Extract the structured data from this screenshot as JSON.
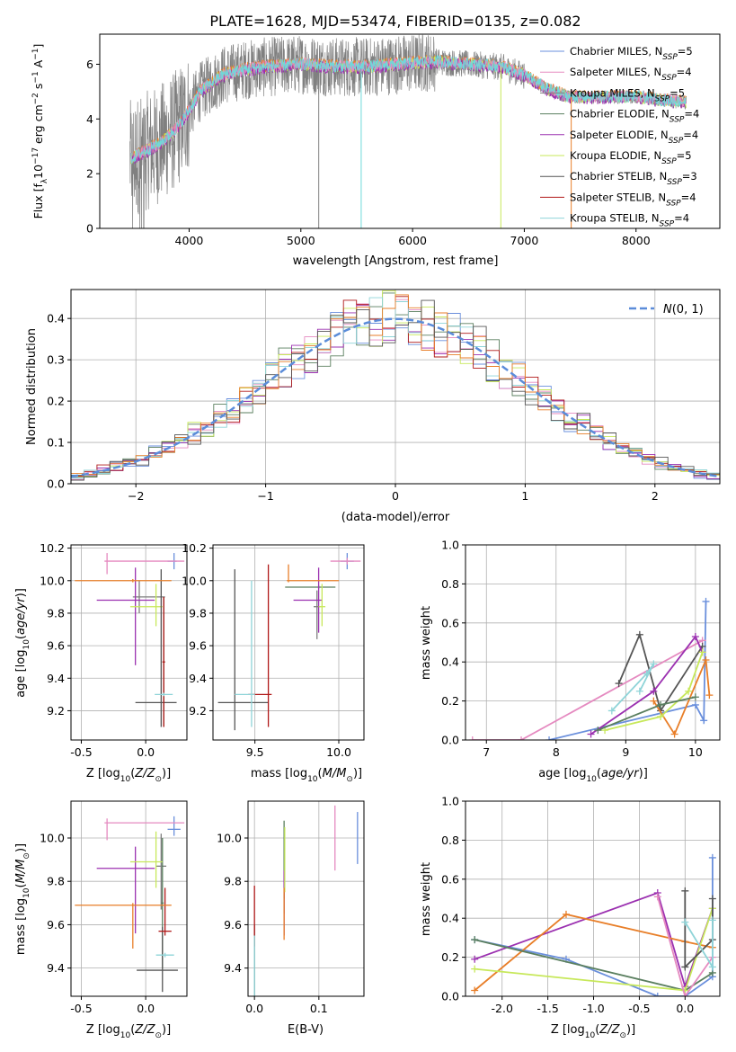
{
  "figure_title": "PLATE=1628, MJD=53474, FIBERID=0135, z=0.082",
  "colors": {
    "chabrier_miles": "#6a8fdc",
    "salpeter_miles": "#e58ac0",
    "kroupa_miles": "#7f7f7f",
    "chabrier_elodie": "#5a7f5f",
    "salpeter_elodie": "#9b30b0",
    "kroupa_elodie": "#c7e85a",
    "chabrier_stelib": "#555555",
    "salpeter_stelib": "#b01818",
    "kroupa_stelib": "#8fd4d8",
    "data": "#808080",
    "orange": "#e87e28",
    "cyan": "#6fd9d9"
  },
  "chart_data": [
    {
      "id": "spectrum",
      "type": "line",
      "xlabel": "wavelength [Angstrom, rest frame]",
      "ylabel": "Flux [f_λ10^-17 erg cm^-2 s^-1 A^-1]",
      "xlim": [
        3200,
        8750
      ],
      "ylim": [
        0,
        7.1
      ],
      "xticks": [
        4000,
        5000,
        6000,
        7000,
        8000
      ],
      "yticks": [
        0,
        2,
        4,
        6
      ],
      "grid": false,
      "legend": "upper right",
      "legend_labels": [
        "Chabrier MILES, N_SSP=5",
        "Salpeter MILES, N_SSP=4",
        "Kroupa MILES, N_SSP=5",
        "Chabrier ELODIE, N_SSP=4",
        "Salpeter ELODIE, N_SSP=4",
        "Kroupa ELODIE, N_SSP=5",
        "Chabrier STELIB, N_SSP=3",
        "Salpeter STELIB, N_SSP=4",
        "Kroupa STELIB, N_SSP=4"
      ],
      "continuum": {
        "x": [
          3470,
          3550,
          3700,
          3800,
          3900,
          4000,
          4100,
          4300,
          4500,
          4700,
          5000,
          5300,
          5600,
          5900,
          6200,
          6500,
          6800,
          7000,
          7200,
          7400,
          7600,
          7800,
          8000,
          8200,
          8450
        ],
        "y": [
          2.5,
          2.7,
          3.0,
          3.3,
          3.7,
          4.3,
          5.0,
          5.6,
          5.8,
          5.9,
          6.0,
          5.9,
          5.9,
          6.0,
          6.1,
          6.0,
          5.9,
          5.6,
          5.1,
          4.8,
          4.8,
          4.8,
          4.8,
          4.7,
          4.6
        ]
      }
    },
    {
      "id": "residual_histogram",
      "type": "bar",
      "xlabel": "(data-model)/error",
      "ylabel": "Normed distribution",
      "xlim": [
        -2.5,
        2.5
      ],
      "ylim": [
        0,
        0.47
      ],
      "xticks": [
        -2,
        -1,
        0,
        1,
        2
      ],
      "yticks": [
        0.0,
        0.1,
        0.2,
        0.3,
        0.4
      ],
      "grid": true,
      "legend": "upper right",
      "legend_labels": [
        "N(0,1)"
      ]
    },
    {
      "id": "age_vs_Z",
      "type": "scatter",
      "xlabel": "Z [log10(Z/Z⊙)]",
      "ylabel": "age  [log10(age/yr)]",
      "xlim": [
        -0.58,
        0.32
      ],
      "ylim": [
        9.02,
        10.22
      ],
      "xticks": [
        -0.5,
        0.0
      ],
      "yticks": [
        9.2,
        9.4,
        9.6,
        9.8,
        10.0,
        10.2
      ],
      "grid": true,
      "points": [
        {
          "series": "chabrier_miles",
          "x": 0.22,
          "y": 10.12,
          "xerr": [
            0.05,
            0.02
          ],
          "yerr": [
            0.05,
            0.05
          ]
        },
        {
          "series": "salpeter_miles",
          "x": -0.3,
          "y": 10.12,
          "xerr": [
            0.02,
            0.6
          ],
          "yerr": [
            0.08,
            0.05
          ]
        },
        {
          "series": "kroupa_miles",
          "x": -0.05,
          "y": 9.9,
          "xerr": [
            0.05,
            0.2
          ],
          "yerr": [
            0.1,
            0.1
          ]
        },
        {
          "series": "chabrier_elodie",
          "x": 0.14,
          "y": 9.5,
          "xerr": [
            0.01,
            0.01
          ],
          "yerr": [
            0.4,
            0.4
          ]
        },
        {
          "series": "salpeter_elodie",
          "x": -0.08,
          "y": 9.88,
          "xerr": [
            0.3,
            0.15
          ],
          "yerr": [
            0.4,
            0.2
          ]
        },
        {
          "series": "kroupa_elodie",
          "x": 0.08,
          "y": 9.84,
          "xerr": [
            0.2,
            0.05
          ],
          "yerr": [
            0.12,
            0.14
          ]
        },
        {
          "series": "chabrier_stelib",
          "x": 0.12,
          "y": 9.25,
          "xerr": [
            0.2,
            0.12
          ],
          "yerr": [
            0.15,
            0.82
          ]
        },
        {
          "series": "salpeter_stelib",
          "x": 0.14,
          "y": 9.5,
          "xerr": [
            0.01,
            0.01
          ],
          "yerr": [
            0.4,
            0.4
          ]
        },
        {
          "series": "kroupa_stelib",
          "x": 0.14,
          "y": 9.3,
          "xerr": [
            0.07,
            0.07
          ],
          "yerr": [
            0.01,
            0.01
          ]
        },
        {
          "series": "orange",
          "x": -0.1,
          "y": 10.0,
          "xerr": [
            0.45,
            0.3
          ],
          "yerr": [
            0.01,
            0.01
          ]
        }
      ]
    },
    {
      "id": "age_vs_mass",
      "type": "scatter",
      "xlabel": "mass [log10(M/M⊙)]",
      "ylabel": "",
      "xlim": [
        9.25,
        10.15
      ],
      "ylim": [
        9.02,
        10.22
      ],
      "xticks": [
        9.5,
        10.0
      ],
      "yticks": [
        9.2,
        9.4,
        9.6,
        9.8,
        10.0,
        10.2
      ],
      "grid": true,
      "points": [
        {
          "series": "chabrier_miles",
          "x": 10.05,
          "y": 10.12,
          "xerr": [
            0.04,
            0.04
          ],
          "yerr": [
            0.05,
            0.05
          ]
        },
        {
          "series": "salpeter_miles",
          "x": 10.05,
          "y": 10.12,
          "xerr": [
            0.1,
            0.08
          ],
          "yerr": [
            0.02,
            0.02
          ]
        },
        {
          "series": "kroupa_miles",
          "x": 9.87,
          "y": 9.84,
          "xerr": [
            0.02,
            0.02
          ],
          "yerr": [
            0.2,
            0.1
          ]
        },
        {
          "series": "chabrier_elodie",
          "x": 9.88,
          "y": 9.96,
          "xerr": [
            0.2,
            0.1
          ],
          "yerr": [
            0.01,
            0.01
          ]
        },
        {
          "series": "salpeter_elodie",
          "x": 9.88,
          "y": 9.88,
          "xerr": [
            0.15,
            0.02
          ],
          "yerr": [
            0.2,
            0.2
          ]
        },
        {
          "series": "kroupa_elodie",
          "x": 9.9,
          "y": 9.84,
          "xerr": [
            0.02,
            0.02
          ],
          "yerr": [
            0.12,
            0.14
          ]
        },
        {
          "series": "chabrier_stelib",
          "x": 9.38,
          "y": 9.25,
          "xerr": [
            0.1,
            0.2
          ],
          "yerr": [
            0.17,
            0.82
          ]
        },
        {
          "series": "salpeter_stelib",
          "x": 9.58,
          "y": 9.3,
          "xerr": [
            0.12,
            0.02
          ],
          "yerr": [
            0.2,
            0.8
          ]
        },
        {
          "series": "kroupa_stelib",
          "x": 9.48,
          "y": 9.3,
          "xerr": [
            0.1,
            0.02
          ],
          "yerr": [
            0.2,
            0.7
          ]
        },
        {
          "series": "orange",
          "x": 9.7,
          "y": 10.0,
          "xerr": [
            0.01,
            0.3
          ],
          "yerr": [
            0.01,
            0.1
          ]
        }
      ]
    },
    {
      "id": "mass_weight_vs_age",
      "type": "line",
      "xlabel": "age  [log10(age/yr)]",
      "ylabel": "mass weight",
      "xlim": [
        6.7,
        10.35
      ],
      "ylim": [
        0,
        1.0
      ],
      "xticks": [
        7,
        8,
        9,
        10
      ],
      "yticks": [
        0.0,
        0.2,
        0.4,
        0.6,
        0.8,
        1.0
      ],
      "grid": true,
      "series": [
        {
          "color": "chabrier_miles",
          "x": [
            7.9,
            10.0,
            10.12,
            10.15
          ],
          "y": [
            0.0,
            0.18,
            0.1,
            0.71
          ]
        },
        {
          "color": "salpeter_miles",
          "x": [
            6.8,
            7.5,
            10.1
          ],
          "y": [
            0.0,
            0.0,
            0.51
          ]
        },
        {
          "color": "chabrier_stelib",
          "x": [
            8.9,
            9.2,
            9.5,
            10.1
          ],
          "y": [
            0.29,
            0.54,
            0.15,
            0.48
          ]
        },
        {
          "color": "kroupa_stelib",
          "x": [
            8.8,
            9.3,
            9.4,
            9.2
          ],
          "y": [
            0.15,
            0.34,
            0.39,
            0.25
          ]
        },
        {
          "color": "salpeter_elodie",
          "x": [
            8.5,
            9.4,
            10.0,
            10.1
          ],
          "y": [
            0.03,
            0.25,
            0.53,
            0.45
          ]
        },
        {
          "color": "orange",
          "x": [
            9.4,
            9.7,
            10.15,
            10.2
          ],
          "y": [
            0.2,
            0.03,
            0.41,
            0.23
          ]
        },
        {
          "color": "kroupa_elodie",
          "x": [
            8.7,
            9.5,
            9.9,
            10.1
          ],
          "y": [
            0.05,
            0.12,
            0.25,
            0.45
          ]
        },
        {
          "color": "chabrier_elodie",
          "x": [
            8.6,
            9.5,
            10.0
          ],
          "y": [
            0.05,
            0.18,
            0.22
          ]
        }
      ]
    },
    {
      "id": "mass_vs_Z",
      "type": "scatter",
      "xlabel": "Z [log10(Z/Z⊙)]",
      "ylabel": "mass [log10(M/M⊙)]",
      "xlim": [
        -0.58,
        0.32
      ],
      "ylim": [
        9.27,
        10.17
      ],
      "xticks": [
        -0.5,
        0.0
      ],
      "yticks": [
        9.4,
        9.6,
        9.8,
        10.0
      ],
      "grid": true,
      "points": [
        {
          "series": "chabrier_miles",
          "x": 0.22,
          "y": 10.04,
          "xerr": [
            0.05,
            0.05
          ],
          "yerr": [
            0.03,
            0.06
          ]
        },
        {
          "series": "salpeter_miles",
          "x": -0.3,
          "y": 10.07,
          "xerr": [
            0.02,
            0.6
          ],
          "yerr": [
            0.08,
            0.02
          ]
        },
        {
          "series": "kroupa_miles",
          "x": 0.12,
          "y": 9.87,
          "xerr": [
            0.04,
            0.04
          ],
          "yerr": [
            0.2,
            0.15
          ]
        },
        {
          "series": "chabrier_elodie",
          "x": 0.13,
          "y": 9.7,
          "xerr": [
            0.01,
            0.01
          ],
          "yerr": [
            0.3,
            0.3
          ]
        },
        {
          "series": "salpeter_elodie",
          "x": -0.08,
          "y": 9.86,
          "xerr": [
            0.3,
            0.15
          ],
          "yerr": [
            0.3,
            0.1
          ]
        },
        {
          "series": "kroupa_elodie",
          "x": 0.08,
          "y": 9.89,
          "xerr": [
            0.2,
            0.05
          ],
          "yerr": [
            0.12,
            0.14
          ]
        },
        {
          "series": "chabrier_stelib",
          "x": 0.13,
          "y": 9.39,
          "xerr": [
            0.2,
            0.12
          ],
          "yerr": [
            0.1,
            0.2
          ]
        },
        {
          "series": "salpeter_stelib",
          "x": 0.15,
          "y": 9.57,
          "xerr": [
            0.05,
            0.05
          ],
          "yerr": [
            0.02,
            0.2
          ]
        },
        {
          "series": "kroupa_stelib",
          "x": 0.15,
          "y": 9.46,
          "xerr": [
            0.07,
            0.07
          ],
          "yerr": [
            0.01,
            0.01
          ]
        },
        {
          "series": "orange",
          "x": -0.1,
          "y": 9.69,
          "xerr": [
            0.45,
            0.3
          ],
          "yerr": [
            0.2,
            0.01
          ]
        }
      ]
    },
    {
      "id": "mass_vs_ebv",
      "type": "scatter",
      "xlabel": "E(B-V)",
      "ylabel": "",
      "xlim": [
        -0.01,
        0.17
      ],
      "ylim": [
        9.27,
        10.17
      ],
      "xticks": [
        0.0,
        0.1
      ],
      "yticks": [
        9.4,
        9.6,
        9.8,
        10.0
      ],
      "grid": true,
      "points": [
        {
          "series": "chabrier_miles",
          "x": 0.16,
          "y": 10.0,
          "xerr": [
            0,
            0
          ],
          "yerr": [
            0.12,
            0.12
          ]
        },
        {
          "series": "salpeter_miles",
          "x": 0.125,
          "y": 10.0,
          "xerr": [
            0,
            0
          ],
          "yerr": [
            0.15,
            0.15
          ]
        },
        {
          "series": "kroupa_miles",
          "x": 0.046,
          "y": 9.8,
          "xerr": [
            0,
            0
          ],
          "yerr": [
            0.15,
            0.15
          ]
        },
        {
          "series": "chabrier_elodie",
          "x": 0.046,
          "y": 9.9,
          "xerr": [
            0,
            0
          ],
          "yerr": [
            0.18,
            0.18
          ]
        },
        {
          "series": "salpeter_elodie",
          "x": 0.046,
          "y": 9.7,
          "xerr": [
            0,
            0
          ],
          "yerr": [
            0.15,
            0.15
          ]
        },
        {
          "series": "kroupa_elodie",
          "x": 0.047,
          "y": 9.9,
          "xerr": [
            0,
            0
          ],
          "yerr": [
            0.15,
            0.15
          ]
        },
        {
          "series": "orange",
          "x": 0.046,
          "y": 9.65,
          "xerr": [
            0,
            0
          ],
          "yerr": [
            0.12,
            0.12
          ]
        },
        {
          "series": "chabrier_stelib",
          "x": 0.0,
          "y": 9.45,
          "xerr": [
            0,
            0
          ],
          "yerr": [
            0.18,
            0.15
          ]
        },
        {
          "series": "salpeter_stelib",
          "x": 0.0,
          "y": 9.6,
          "xerr": [
            0,
            0
          ],
          "yerr": [
            0.1,
            0.18
          ]
        },
        {
          "series": "kroupa_stelib",
          "x": 0.0,
          "y": 9.45,
          "xerr": [
            0,
            0
          ],
          "yerr": [
            0.18,
            0.1
          ]
        }
      ]
    },
    {
      "id": "mass_weight_vs_Z",
      "type": "line",
      "xlabel": "Z [log10(Z/Z⊙)]",
      "ylabel": "mass weight",
      "xlim": [
        -2.4,
        0.38
      ],
      "ylim": [
        0,
        1.0
      ],
      "xticks": [
        -2.0,
        -1.5,
        -1.0,
        -0.5,
        0.0
      ],
      "yticks": [
        0.0,
        0.2,
        0.4,
        0.6,
        0.8,
        1.0
      ],
      "grid": true,
      "series": [
        {
          "color": "chabrier_miles",
          "x": [
            -2.3,
            -1.3,
            -0.3,
            0.0,
            0.3,
            0.3
          ],
          "y": [
            0.29,
            0.19,
            0.0,
            0.0,
            0.1,
            0.71
          ]
        },
        {
          "color": "salpeter_elodie",
          "x": [
            -2.3,
            -0.3,
            0.0,
            0.3
          ],
          "y": [
            0.19,
            0.53,
            0.05,
            0.45
          ]
        },
        {
          "color": "orange",
          "x": [
            -2.3,
            -1.3,
            0.0,
            0.3
          ],
          "y": [
            0.03,
            0.42,
            0.28,
            0.25
          ]
        },
        {
          "color": "chabrier_elodie",
          "x": [
            -2.3,
            0.0,
            0.3
          ],
          "y": [
            0.29,
            0.03,
            0.12
          ]
        },
        {
          "color": "kroupa_elodie",
          "x": [
            -2.3,
            0.0,
            0.3
          ],
          "y": [
            0.14,
            0.03,
            0.45
          ]
        },
        {
          "color": "salpeter_miles",
          "x": [
            -0.3,
            0.0,
            0.3
          ],
          "y": [
            0.51,
            0.0,
            0.2
          ]
        },
        {
          "color": "chabrier_stelib",
          "x": [
            0.0,
            0.0,
            0.3,
            0.3
          ],
          "y": [
            0.54,
            0.15,
            0.29,
            0.5
          ]
        },
        {
          "color": "kroupa_stelib",
          "x": [
            0.0,
            0.3,
            0.3
          ],
          "y": [
            0.38,
            0.15,
            0.39
          ]
        }
      ]
    }
  ]
}
